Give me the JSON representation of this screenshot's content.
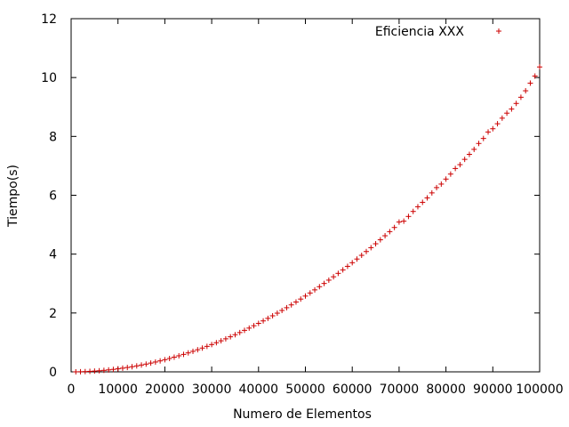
{
  "chart_data": {
    "type": "scatter",
    "title": "",
    "xlabel": "Numero de Elementos",
    "ylabel": "Tiempo(s)",
    "xlim": [
      0,
      100000
    ],
    "ylim": [
      0,
      12
    ],
    "xticks": [
      0,
      10000,
      20000,
      30000,
      40000,
      50000,
      60000,
      70000,
      80000,
      90000,
      100000
    ],
    "yticks": [
      0,
      2,
      4,
      6,
      8,
      10,
      12
    ],
    "xtick_labels": [
      "0",
      "10000",
      "20000",
      "30000",
      "40000",
      "50000",
      "60000",
      "70000",
      "80000",
      "90000",
      "100000"
    ],
    "ytick_labels": [
      "0",
      "2",
      "4",
      "6",
      "8",
      "10",
      "12"
    ],
    "grid": false,
    "legend_position": "top-right",
    "series": [
      {
        "name": "Eficiencia XXX",
        "color": "#cc0000",
        "marker": "plus",
        "x": [
          1000,
          2000,
          3000,
          4000,
          5000,
          6000,
          7000,
          8000,
          9000,
          10000,
          11000,
          12000,
          13000,
          14000,
          15000,
          16000,
          17000,
          18000,
          19000,
          20000,
          21000,
          22000,
          23000,
          24000,
          25000,
          26000,
          27000,
          28000,
          29000,
          30000,
          31000,
          32000,
          33000,
          34000,
          35000,
          36000,
          37000,
          38000,
          39000,
          40000,
          41000,
          42000,
          43000,
          44000,
          45000,
          46000,
          47000,
          48000,
          49000,
          50000,
          51000,
          52000,
          53000,
          54000,
          55000,
          56000,
          57000,
          58000,
          59000,
          60000,
          61000,
          62000,
          63000,
          64000,
          65000,
          66000,
          67000,
          68000,
          69000,
          70000,
          71000,
          72000,
          73000,
          74000,
          75000,
          76000,
          77000,
          78000,
          79000,
          80000,
          81000,
          82000,
          83000,
          84000,
          85000,
          86000,
          87000,
          88000,
          89000,
          90000,
          91000,
          92000,
          93000,
          94000,
          95000,
          96000,
          97000,
          98000,
          99000,
          100000
        ],
        "y": [
          0.001,
          0.004,
          0.009,
          0.017,
          0.026,
          0.037,
          0.051,
          0.066,
          0.084,
          0.103,
          0.125,
          0.148,
          0.174,
          0.202,
          0.232,
          0.263,
          0.298,
          0.334,
          0.372,
          0.412,
          0.454,
          0.499,
          0.545,
          0.593,
          0.644,
          0.697,
          0.751,
          0.808,
          0.866,
          0.927,
          0.99,
          1.055,
          1.122,
          1.191,
          1.262,
          1.335,
          1.41,
          1.487,
          1.567,
          1.648,
          1.731,
          1.817,
          1.904,
          1.994,
          2.086,
          2.179,
          2.275,
          2.373,
          2.473,
          2.575,
          2.679,
          2.785,
          2.893,
          3.003,
          3.116,
          3.23,
          3.346,
          3.465,
          3.585,
          3.708,
          3.833,
          3.959,
          4.088,
          4.219,
          4.352,
          4.487,
          4.624,
          4.764,
          4.905,
          5.09,
          5.12,
          5.28,
          5.45,
          5.61,
          5.76,
          5.91,
          6.08,
          6.26,
          6.38,
          6.55,
          6.72,
          6.91,
          7.04,
          7.22,
          7.39,
          7.56,
          7.76,
          7.93,
          8.15,
          8.26,
          8.43,
          8.62,
          8.79,
          8.93,
          9.12,
          9.33,
          9.55,
          9.81,
          10.05,
          10.36
        ]
      }
    ]
  }
}
